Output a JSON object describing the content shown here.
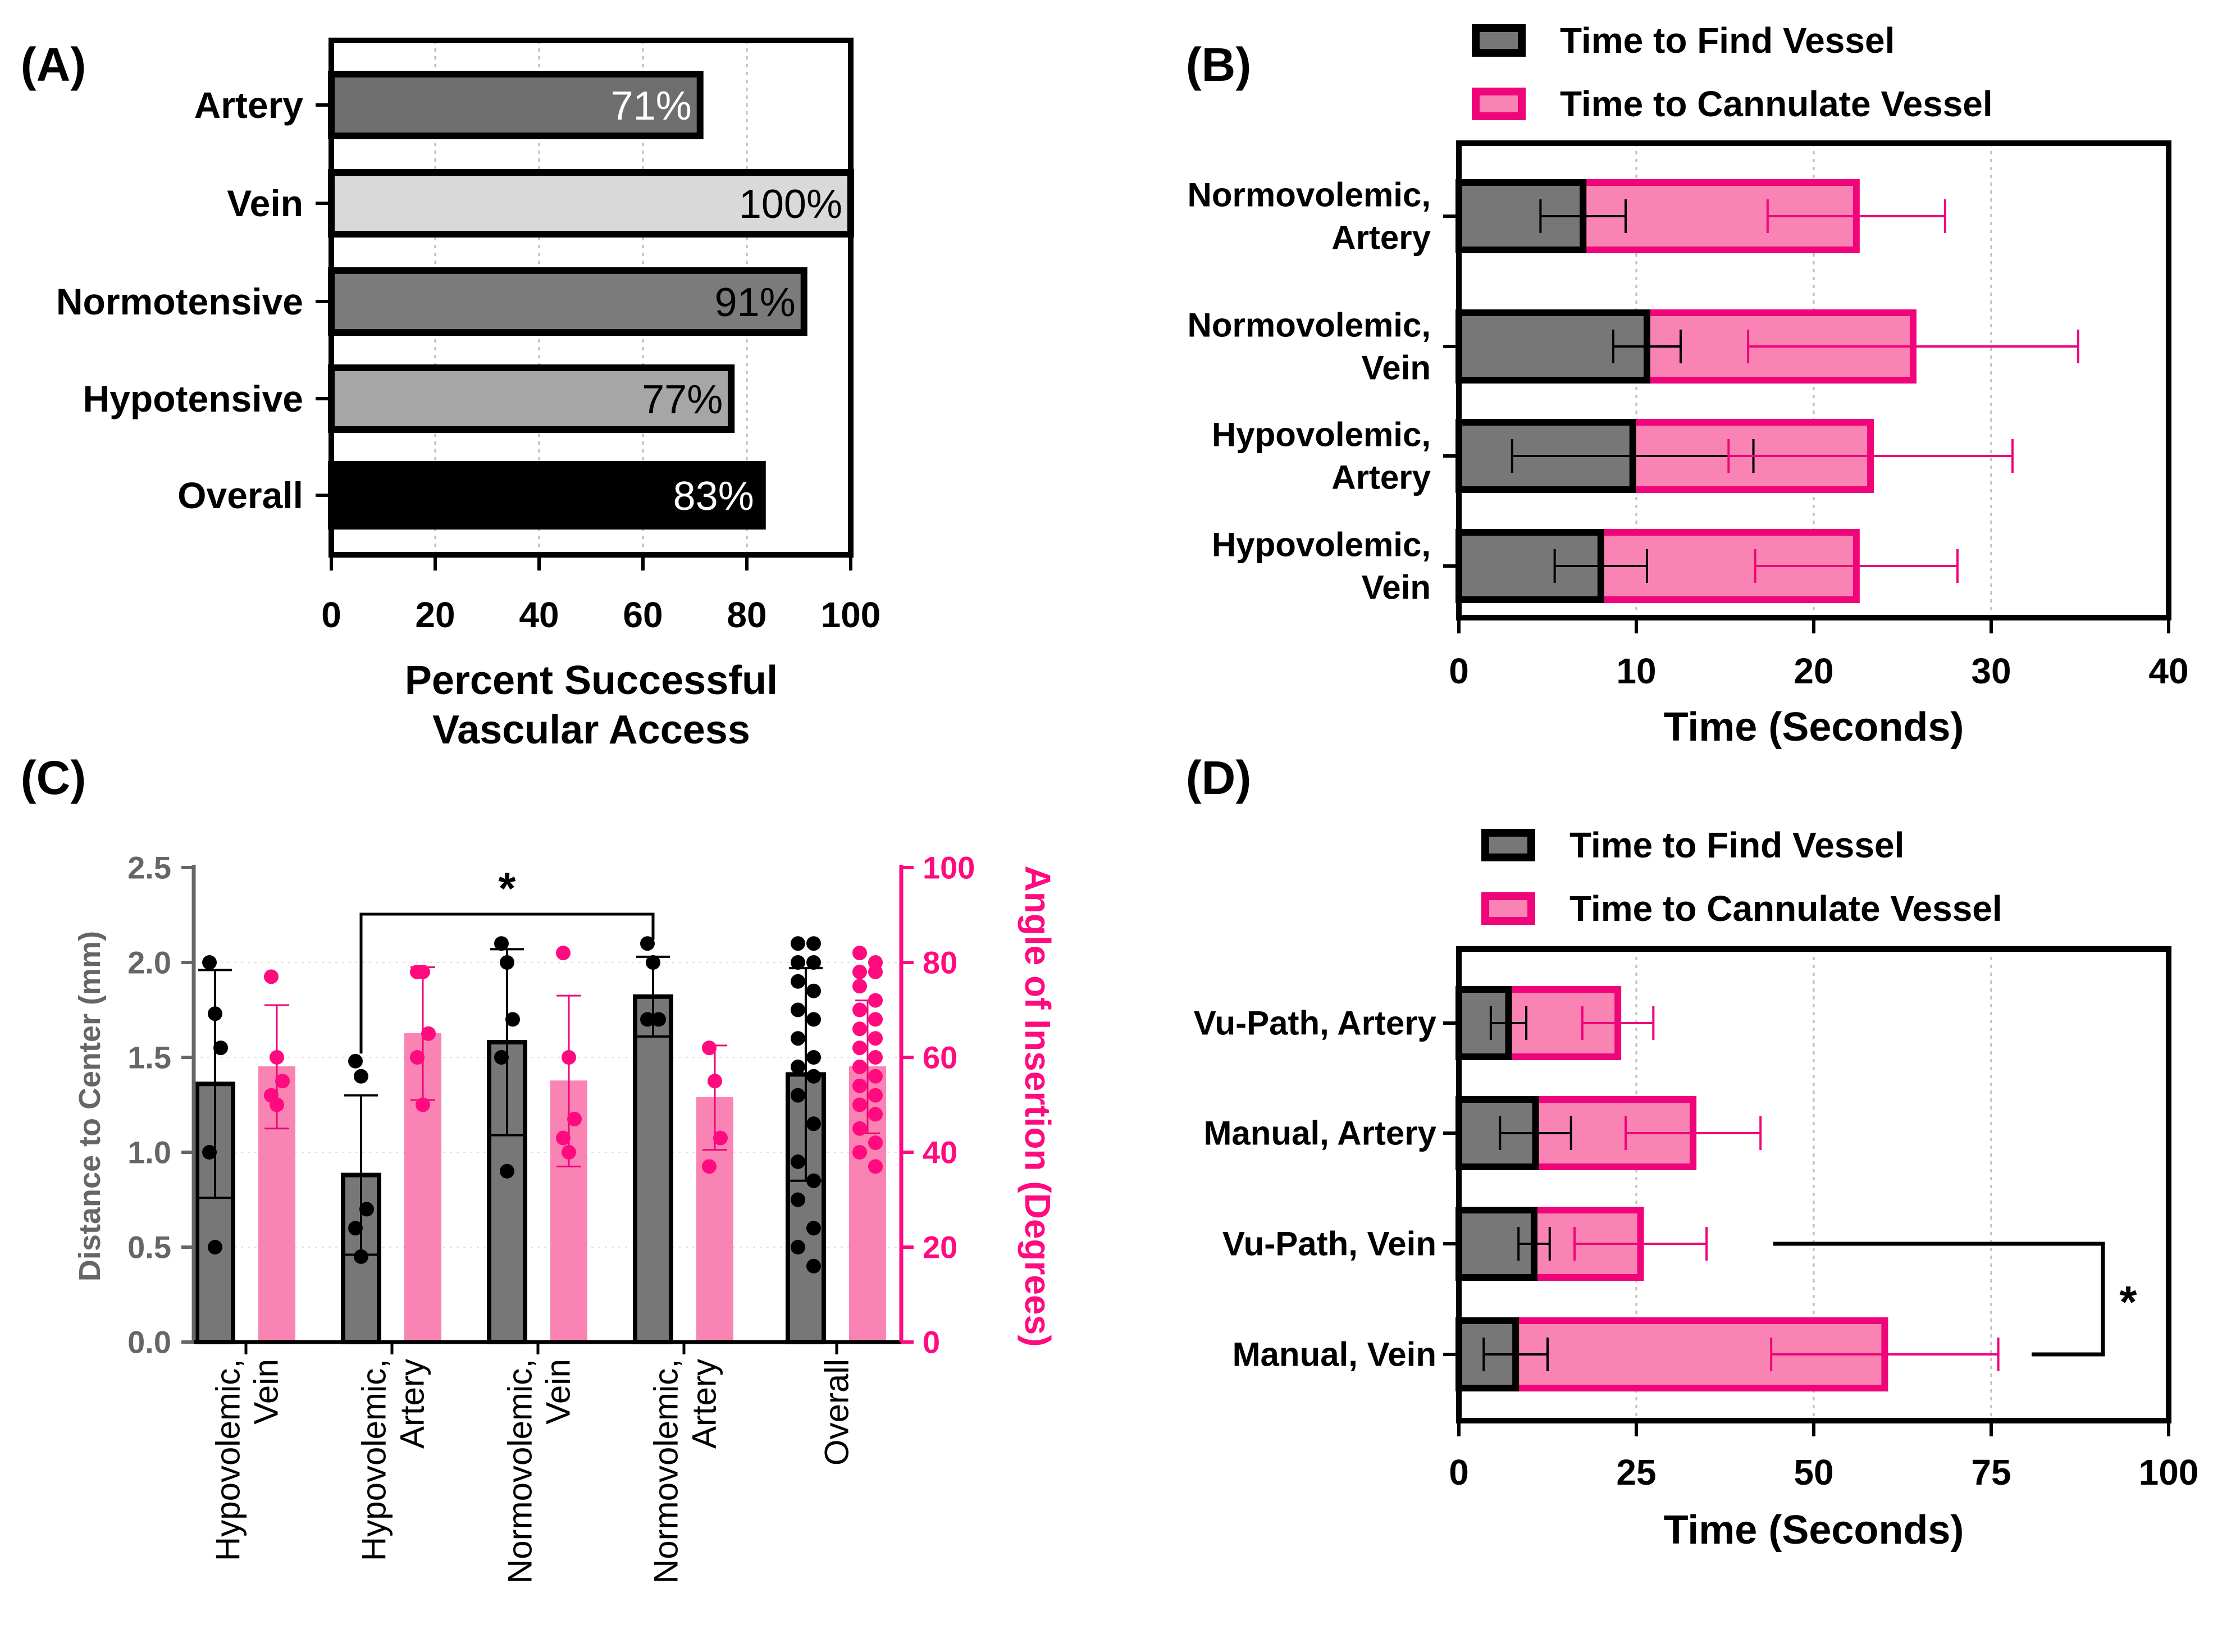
{
  "panel_labels": [
    "(A)",
    "(B)",
    "(C)",
    "(D)"
  ],
  "colors": {
    "black": "#000000",
    "dark_gray": "#6e6e6e",
    "mid_gray": "#7b7b7b",
    "light_gray": "#d9d9d9",
    "gray_hypo": "#a6a6a6",
    "pink_fill": "#f984b4",
    "pink_stroke": "#f0047a",
    "pink_text": "#ff0a7f",
    "grid": "#bbbbbb",
    "axis_gray": "#666666"
  },
  "chart_data": [
    {
      "panel": "(A)",
      "type": "bar",
      "orientation": "horizontal",
      "categories": [
        "Artery",
        "Vein",
        "Normotensive",
        "Hypotensive",
        "Overall"
      ],
      "values": [
        71,
        100,
        91,
        77,
        83
      ],
      "value_labels": [
        "71%",
        "100%",
        "91%",
        "77%",
        "83%"
      ],
      "bar_colors": [
        "#6e6e6e",
        "#d9d9d9",
        "#7b7b7b",
        "#a6a6a6",
        "#000000"
      ],
      "label_colors": [
        "#ffffff",
        "#000000",
        "#000000",
        "#000000",
        "#ffffff"
      ],
      "xlabel_lines": [
        "Percent Successful",
        "Vascular Access"
      ],
      "xlim": [
        0,
        100
      ],
      "xticks": [
        0,
        20,
        40,
        60,
        80,
        100
      ],
      "vertical_grid": true
    },
    {
      "panel": "(B)",
      "type": "bar",
      "orientation": "horizontal",
      "stacked": true,
      "categories": [
        [
          "Normovolemic,",
          "Artery"
        ],
        [
          "Normovolemic,",
          "Vein"
        ],
        [
          "Hypovolemic,",
          "Artery"
        ],
        [
          "Hypovolemic,",
          "Vein"
        ]
      ],
      "series": [
        {
          "name": "Time to Find Vessel",
          "values": [
            7.0,
            10.6,
            9.8,
            8.0
          ],
          "errors": [
            2.4,
            1.9,
            6.8,
            2.6
          ]
        },
        {
          "name": "Time to Cannulate Vessel",
          "values": [
            22.4,
            25.6,
            23.2,
            22.4
          ],
          "errors": [
            5.0,
            9.3,
            8.0,
            5.7
          ]
        }
      ],
      "xlabel": "Time (Seconds)",
      "xlim": [
        0,
        40
      ],
      "xticks": [
        0,
        10,
        20,
        30,
        40
      ],
      "vertical_grid": true,
      "legend": "top"
    },
    {
      "panel": "(C)",
      "type": "bar",
      "dual_axis": true,
      "categories": [
        [
          "Hypovolemic,",
          "Vein"
        ],
        [
          "Hypovolemic,",
          "Artery"
        ],
        [
          "Normovolemic,",
          "Vein"
        ],
        [
          "Normovolemic,",
          "Artery"
        ],
        [
          "Overall"
        ]
      ],
      "left_axis": {
        "label": "Distance to Center (mm)",
        "ylim": [
          0,
          2.5
        ],
        "ticks": [
          "0.0",
          "0.5",
          "1.0",
          "1.5",
          "2.0",
          "2.5"
        ]
      },
      "right_axis": {
        "label": "Angle of Insertion (Degrees)",
        "ylim": [
          0,
          100
        ],
        "ticks": [
          "0",
          "20",
          "40",
          "60",
          "80",
          "100"
        ]
      },
      "distance": {
        "means": [
          1.36,
          0.88,
          1.58,
          1.82,
          1.41
        ],
        "sd": [
          0.6,
          0.42,
          0.49,
          0.21,
          0.56
        ],
        "points": [
          [
            2.0,
            1.73,
            1.55,
            1.0,
            0.5
          ],
          [
            1.48,
            1.4,
            0.7,
            0.6,
            0.45
          ],
          [
            2.1,
            2.0,
            1.7,
            1.5,
            0.9
          ],
          [
            2.1,
            2.0,
            1.7,
            1.7
          ],
          [
            2.1,
            2.1,
            2.0,
            2.0,
            1.9,
            1.85,
            1.75,
            1.7,
            1.6,
            1.5,
            1.45,
            1.4,
            1.3,
            1.15,
            0.95,
            0.85,
            0.75,
            0.6,
            0.5,
            0.4
          ]
        ]
      },
      "angle": {
        "means": [
          58,
          65,
          55,
          51.5,
          58
        ],
        "sd": [
          13,
          14,
          18,
          11,
          14
        ],
        "points": [
          [
            77,
            60,
            55,
            52,
            50
          ],
          [
            78,
            78,
            65,
            60,
            50
          ],
          [
            82,
            60,
            47,
            43,
            40
          ],
          [
            62,
            55,
            43,
            37
          ],
          [
            82,
            80,
            78,
            78,
            75,
            72,
            70,
            68,
            66,
            64,
            62,
            60,
            58,
            56,
            54,
            52,
            50,
            48,
            45,
            42,
            40,
            37
          ]
        ]
      },
      "significance": {
        "label": "*",
        "between": [
          1,
          3
        ]
      }
    },
    {
      "panel": "(D)",
      "type": "bar",
      "orientation": "horizontal",
      "stacked": true,
      "categories": [
        "Vu-Path, Artery",
        "Manual, Artery",
        "Vu-Path, Vein",
        "Manual, Vein"
      ],
      "series": [
        {
          "name": "Time to Find Vessel",
          "values": [
            7.0,
            10.8,
            10.6,
            8.0
          ],
          "errors": [
            2.5,
            5.0,
            2.2,
            4.5
          ]
        },
        {
          "name": "Time to Cannulate Vessel",
          "values": [
            22.4,
            33.0,
            25.6,
            60.0
          ],
          "errors": [
            5.0,
            9.5,
            9.3,
            16.0
          ]
        }
      ],
      "xlabel": "Time (Seconds)",
      "xlim": [
        0,
        100
      ],
      "xticks": [
        0,
        25,
        50,
        75,
        100
      ],
      "vertical_grid": true,
      "legend": "top",
      "significance": {
        "label": "*",
        "between": [
          2,
          3
        ]
      }
    }
  ]
}
